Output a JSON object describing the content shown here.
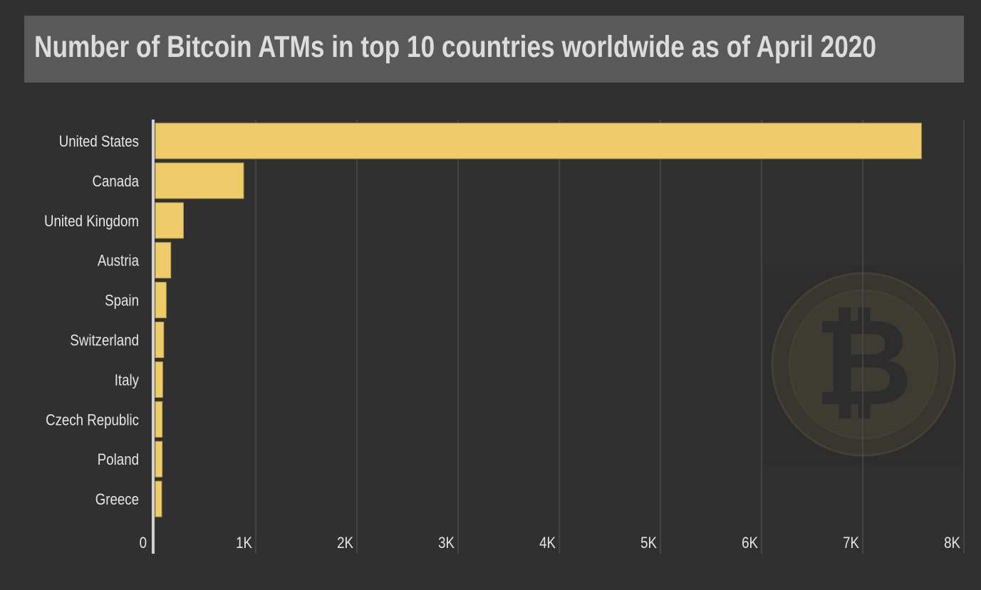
{
  "chart_data": {
    "type": "bar",
    "orientation": "horizontal",
    "title": "Number of Bitcoin ATMs in top 10 countries worldwide as of April 2020",
    "categories": [
      "United States",
      "Canada",
      "United Kingdom",
      "Austria",
      "Spain",
      "Switzerland",
      "Italy",
      "Czech Republic",
      "Poland",
      "Greece"
    ],
    "values": [
      7580,
      880,
      285,
      160,
      115,
      90,
      80,
      75,
      75,
      70
    ],
    "xlim": [
      0,
      8000
    ],
    "xticks": [
      0,
      1000,
      2000,
      3000,
      4000,
      5000,
      6000,
      7000,
      8000
    ],
    "xtick_labels": [
      "0",
      "1K",
      "2K",
      "3K",
      "4K",
      "5K",
      "6K",
      "7K",
      "8K"
    ],
    "xlabel": "",
    "ylabel": "",
    "grid": true,
    "bar_color": "#f0cb6a"
  }
}
